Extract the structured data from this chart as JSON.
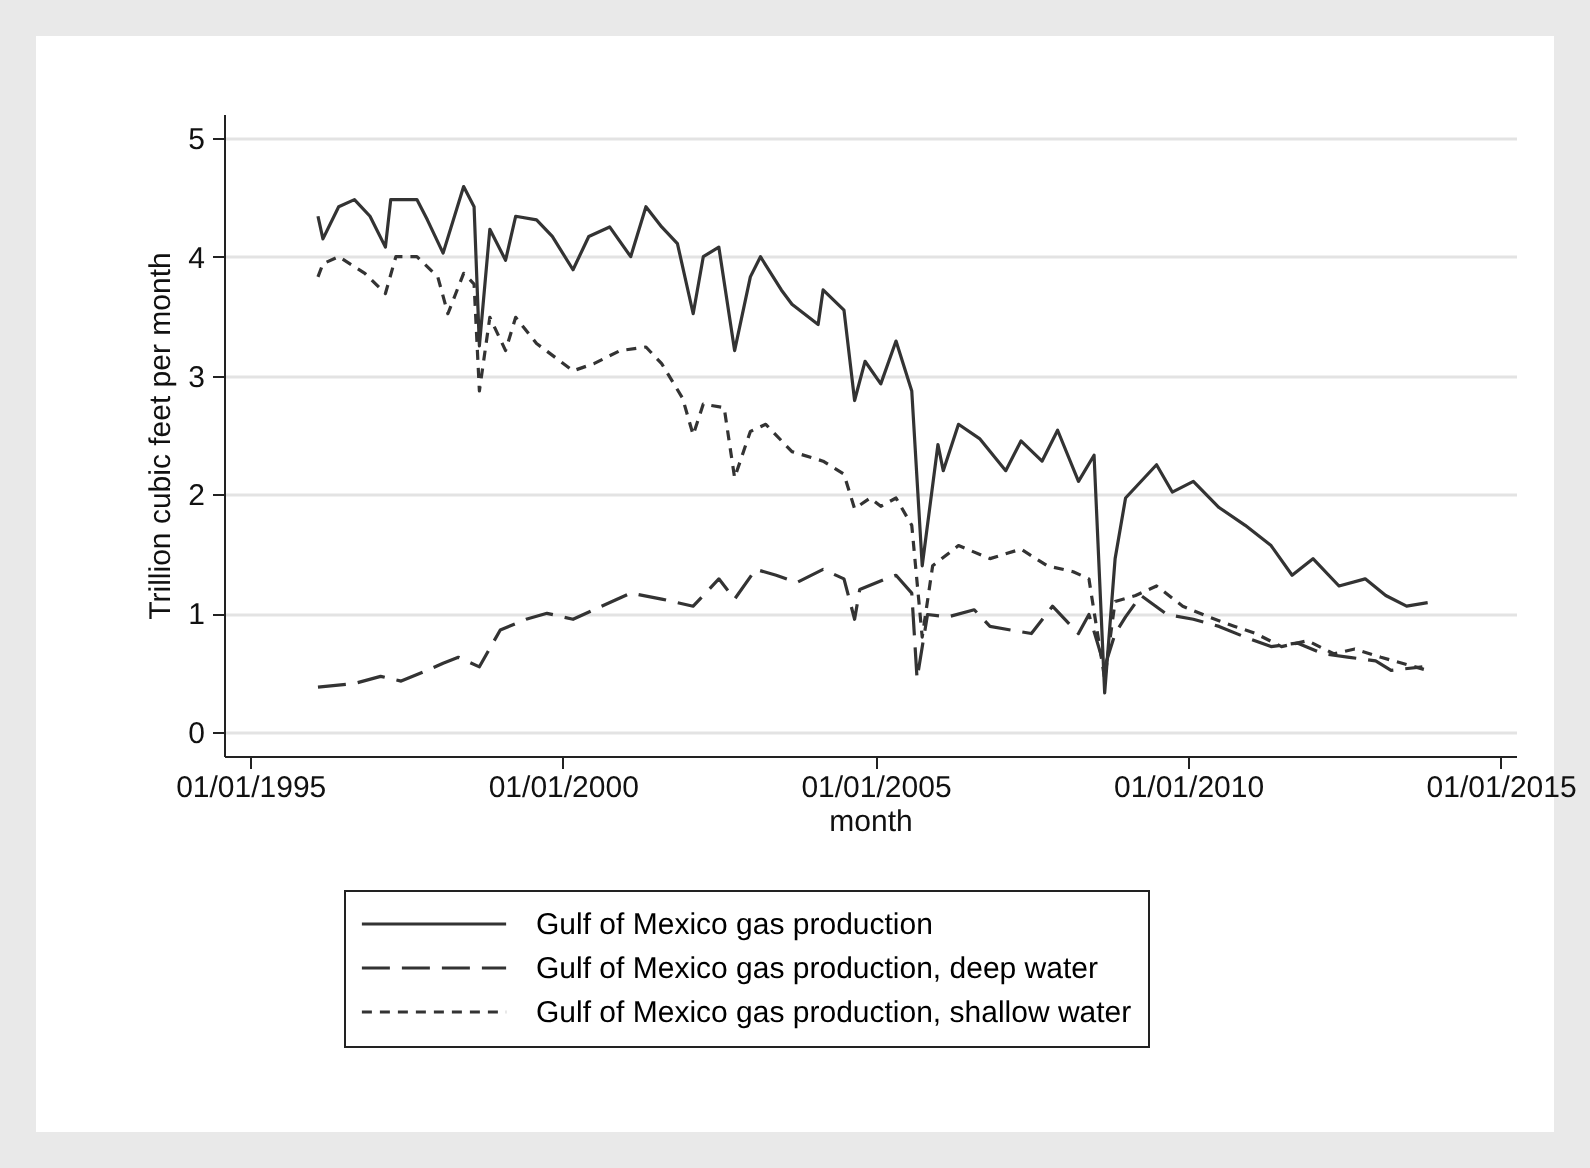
{
  "chart_data": {
    "type": "line",
    "xlabel": "month",
    "ylabel": "Trillion cubic feet per month",
    "xlim": [
      "1994-08",
      "2015-04"
    ],
    "xticks": [
      {
        "value": "1995-01-01",
        "label": "01/01/1995"
      },
      {
        "value": "2000-01-01",
        "label": "01/01/2000"
      },
      {
        "value": "2005-01-01",
        "label": "01/01/2005"
      },
      {
        "value": "2010-01-01",
        "label": "01/01/2010"
      },
      {
        "value": "2015-01-01",
        "label": "01/01/2015"
      }
    ],
    "ylim": [
      -0.2,
      5.2
    ],
    "yticks": [
      0,
      1,
      2,
      3,
      4,
      5
    ],
    "grid": "y",
    "legend": "bottom",
    "marker": "none",
    "series": [
      {
        "name": "Gulf of Mexico gas production",
        "color": "#333333",
        "line_style": "solid",
        "x": [
          "1996-02",
          "1996-03",
          "1996-06",
          "1996-09",
          "1996-12",
          "1997-03",
          "1997-04",
          "1997-09",
          "1997-11",
          "1998-02",
          "1998-06",
          "1998-08",
          "1998-09",
          "1998-11",
          "1999-02",
          "1999-04",
          "1999-08",
          "1999-11",
          "2000-03",
          "2000-06",
          "2000-10",
          "2001-02",
          "2001-05",
          "2001-08",
          "2001-11",
          "2002-02",
          "2002-04",
          "2002-07",
          "2002-10",
          "2003-01",
          "2003-03",
          "2003-07",
          "2003-09",
          "2004-02",
          "2004-03",
          "2004-07",
          "2004-09",
          "2004-11",
          "2005-02",
          "2005-05",
          "2005-08",
          "2005-10",
          "2006-01",
          "2006-02",
          "2006-05",
          "2006-09",
          "2007-02",
          "2007-05",
          "2007-09",
          "2007-12",
          "2008-04",
          "2008-07",
          "2008-09",
          "2008-11",
          "2009-01",
          "2009-07",
          "2009-10",
          "2010-02",
          "2010-07",
          "2010-12",
          "2011-05",
          "2011-09",
          "2012-01",
          "2012-06",
          "2012-11",
          "2013-03",
          "2013-07",
          "2013-11"
        ],
        "values": [
          4.34,
          4.15,
          4.42,
          4.48,
          4.34,
          4.08,
          4.48,
          4.48,
          4.31,
          4.03,
          4.59,
          4.42,
          3.25,
          4.23,
          3.97,
          4.34,
          4.31,
          4.17,
          3.89,
          4.17,
          4.25,
          4.0,
          4.42,
          4.25,
          4.11,
          3.52,
          4.0,
          4.08,
          3.21,
          3.83,
          4.0,
          3.72,
          3.6,
          3.43,
          3.72,
          3.55,
          2.79,
          3.12,
          2.93,
          3.29,
          2.87,
          1.4,
          2.42,
          2.2,
          2.59,
          2.47,
          2.2,
          2.45,
          2.28,
          2.54,
          2.11,
          2.33,
          0.33,
          1.46,
          1.97,
          2.25,
          2.02,
          2.11,
          1.89,
          1.74,
          1.57,
          1.32,
          1.46,
          1.23,
          1.29,
          1.15,
          1.06,
          1.09
        ]
      },
      {
        "name": "Gulf of Mexico gas production, deep water",
        "color": "#333333",
        "line_style": "dashed",
        "x": [
          "1996-02",
          "1996-09",
          "1997-02",
          "1997-06",
          "1997-11",
          "1998-02",
          "1998-05",
          "1998-09",
          "1999-01",
          "1999-06",
          "1999-10",
          "2000-03",
          "2000-07",
          "2001-02",
          "2001-08",
          "2002-02",
          "2002-07",
          "2002-10",
          "2003-02",
          "2003-06",
          "2003-10",
          "2004-03",
          "2004-07",
          "2004-09",
          "2004-10",
          "2005-03",
          "2005-05",
          "2005-08",
          "2005-09",
          "2005-11",
          "2006-03",
          "2006-08",
          "2006-11",
          "2007-03",
          "2007-07",
          "2007-11",
          "2008-04",
          "2008-06",
          "2008-09",
          "2008-11",
          "2009-01",
          "2009-04",
          "2009-09",
          "2010-02",
          "2010-07",
          "2010-12",
          "2011-05",
          "2011-10",
          "2012-03",
          "2012-08",
          "2013-01",
          "2013-04",
          "2013-10"
        ],
        "values": [
          0.38,
          0.41,
          0.47,
          0.43,
          0.52,
          0.58,
          0.63,
          0.55,
          0.86,
          0.95,
          1.0,
          0.95,
          1.03,
          1.17,
          1.12,
          1.06,
          1.29,
          1.12,
          1.37,
          1.32,
          1.26,
          1.37,
          1.29,
          0.95,
          1.2,
          1.29,
          1.32,
          1.17,
          0.45,
          0.99,
          0.97,
          1.03,
          0.89,
          0.86,
          0.83,
          1.06,
          0.83,
          0.99,
          0.55,
          0.83,
          0.97,
          1.15,
          0.99,
          0.95,
          0.89,
          0.8,
          0.72,
          0.75,
          0.66,
          0.63,
          0.6,
          0.52,
          0.55
        ]
      },
      {
        "name": "Gulf of Mexico gas production, shallow water",
        "color": "#333333",
        "line_style": "dotted",
        "x": [
          "1996-02",
          "1996-03",
          "1996-06",
          "1996-11",
          "1997-03",
          "1997-05",
          "1997-09",
          "1998-01",
          "1998-03",
          "1998-06",
          "1998-08",
          "1998-09",
          "1998-11",
          "1999-02",
          "1999-04",
          "1999-08",
          "2000-03",
          "2000-07",
          "2000-12",
          "2001-05",
          "2001-08",
          "2001-12",
          "2002-02",
          "2002-04",
          "2002-08",
          "2002-10",
          "2003-01",
          "2003-04",
          "2003-09",
          "2004-03",
          "2004-07",
          "2004-09",
          "2004-12",
          "2005-02",
          "2005-05",
          "2005-08",
          "2005-10",
          "2005-12",
          "2006-05",
          "2006-11",
          "2007-05",
          "2007-10",
          "2008-03",
          "2008-06",
          "2008-09",
          "2008-11",
          "2009-03",
          "2009-07",
          "2009-12",
          "2010-05",
          "2010-10",
          "2011-02",
          "2011-07",
          "2011-12",
          "2012-05",
          "2012-09",
          "2013-02",
          "2013-11"
        ],
        "values": [
          3.83,
          3.94,
          4.0,
          3.86,
          3.69,
          4.0,
          4.0,
          3.83,
          3.52,
          3.86,
          3.77,
          2.87,
          3.49,
          3.21,
          3.49,
          3.27,
          3.04,
          3.1,
          3.21,
          3.24,
          3.1,
          2.81,
          2.5,
          2.76,
          2.73,
          2.14,
          2.53,
          2.59,
          2.36,
          2.28,
          2.17,
          1.88,
          1.97,
          1.9,
          1.97,
          1.74,
          0.8,
          1.4,
          1.57,
          1.46,
          1.54,
          1.4,
          1.35,
          1.29,
          0.45,
          1.1,
          1.15,
          1.23,
          1.06,
          0.97,
          0.89,
          0.83,
          0.72,
          0.77,
          0.66,
          0.7,
          0.63,
          0.52
        ]
      }
    ]
  }
}
